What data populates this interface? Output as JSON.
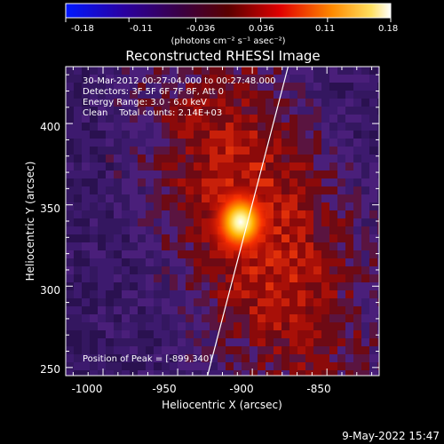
{
  "colorbar": {
    "tick_labels": [
      "-0.18",
      "-0.11",
      "-0.036",
      "0.036",
      "0.11",
      "0.18"
    ],
    "unit_label": "(photons cm⁻² s⁻¹ asec⁻²)",
    "range": [
      -0.18,
      0.18
    ]
  },
  "chart_data": {
    "type": "heatmap",
    "title": "Reconstructed RHESSI Image",
    "xlabel": "Heliocentric X (arcsec)",
    "ylabel": "Heliocentric Y (arcsec)",
    "xlim": [
      -1025,
      -815
    ],
    "ylim": [
      245,
      435
    ],
    "x_ticks": [
      "-1000",
      "-950",
      "-900",
      "-850"
    ],
    "y_ticks": [
      "250",
      "300",
      "350",
      "400"
    ],
    "annotations": [
      "30-Mar-2012 00:27:04.000 to 00:27:48.000",
      "Detectors: 3F 5F 6F 7F 8F, Att 0",
      "Energy Range: 3.0 - 6.0 keV",
      "Clean    Total counts: 2.14E+03"
    ],
    "peak_label": "Position of Peak = [-899,340]",
    "peak": [
      -899,
      340
    ],
    "limb_line": [
      [
        -930,
        245
      ],
      [
        -876,
        435
      ]
    ],
    "colormap": [
      "#0000ff",
      "#4b0082",
      "#8b0000",
      "#ff0000",
      "#ffa500",
      "#ffffff"
    ]
  },
  "footer": {
    "date": "9-May-2022 15:47"
  }
}
